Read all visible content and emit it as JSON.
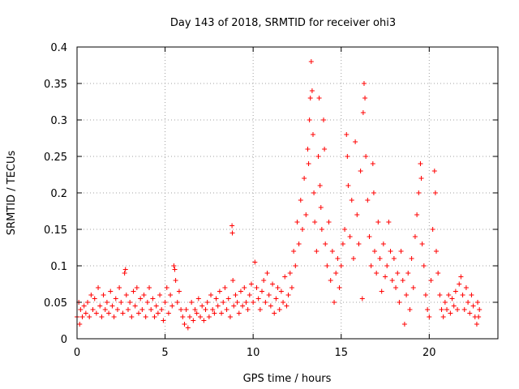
{
  "chart_data": {
    "type": "scatter",
    "title": "Day 143 of 2018, SRMTID for receiver ohi3",
    "xlabel": "GPS time / hours",
    "ylabel": "SRMTID / TECUs",
    "xlim": [
      0,
      23.9
    ],
    "ylim": [
      0,
      0.4
    ],
    "xticks": [
      0,
      5,
      10,
      15,
      20
    ],
    "xtick_labels": [
      "0",
      "5",
      "10",
      "15",
      "20"
    ],
    "yticks": [
      0,
      0.05,
      0.1,
      0.15,
      0.2,
      0.25,
      0.3,
      0.35,
      0.4
    ],
    "ytick_labels": [
      "0",
      "0.05",
      "0.1",
      "0.15",
      "0.2",
      "0.25",
      "0.3",
      "0.35",
      "0.4"
    ],
    "grid": true,
    "marker": "+",
    "color": "#ff0000",
    "series": [
      {
        "name": "SRMTID",
        "points": [
          [
            0.0,
            0.03
          ],
          [
            0.1,
            0.05
          ],
          [
            0.15,
            0.02
          ],
          [
            0.2,
            0.04
          ],
          [
            0.3,
            0.03
          ],
          [
            0.4,
            0.045
          ],
          [
            0.5,
            0.035
          ],
          [
            0.6,
            0.05
          ],
          [
            0.7,
            0.03
          ],
          [
            0.8,
            0.06
          ],
          [
            0.9,
            0.04
          ],
          [
            1.0,
            0.055
          ],
          [
            1.1,
            0.035
          ],
          [
            1.2,
            0.07
          ],
          [
            1.3,
            0.045
          ],
          [
            1.4,
            0.03
          ],
          [
            1.5,
            0.06
          ],
          [
            1.6,
            0.04
          ],
          [
            1.7,
            0.05
          ],
          [
            1.8,
            0.035
          ],
          [
            1.9,
            0.065
          ],
          [
            2.0,
            0.045
          ],
          [
            2.1,
            0.03
          ],
          [
            2.2,
            0.055
          ],
          [
            2.3,
            0.04
          ],
          [
            2.4,
            0.07
          ],
          [
            2.5,
            0.05
          ],
          [
            2.6,
            0.035
          ],
          [
            2.7,
            0.09
          ],
          [
            2.75,
            0.095
          ],
          [
            2.8,
            0.06
          ],
          [
            2.9,
            0.04
          ],
          [
            3.0,
            0.05
          ],
          [
            3.1,
            0.03
          ],
          [
            3.2,
            0.065
          ],
          [
            3.3,
            0.045
          ],
          [
            3.4,
            0.07
          ],
          [
            3.5,
            0.035
          ],
          [
            3.6,
            0.055
          ],
          [
            3.7,
            0.04
          ],
          [
            3.8,
            0.06
          ],
          [
            3.9,
            0.03
          ],
          [
            4.0,
            0.05
          ],
          [
            4.1,
            0.07
          ],
          [
            4.2,
            0.04
          ],
          [
            4.3,
            0.055
          ],
          [
            4.4,
            0.03
          ],
          [
            4.5,
            0.045
          ],
          [
            4.6,
            0.035
          ],
          [
            4.7,
            0.06
          ],
          [
            4.8,
            0.04
          ],
          [
            4.9,
            0.025
          ],
          [
            5.0,
            0.05
          ],
          [
            5.1,
            0.07
          ],
          [
            5.2,
            0.035
          ],
          [
            5.3,
            0.06
          ],
          [
            5.4,
            0.045
          ],
          [
            5.5,
            0.1
          ],
          [
            5.55,
            0.095
          ],
          [
            5.6,
            0.08
          ],
          [
            5.7,
            0.05
          ],
          [
            5.8,
            0.065
          ],
          [
            5.9,
            0.04
          ],
          [
            6.0,
            0.03
          ],
          [
            6.1,
            0.02
          ],
          [
            6.2,
            0.04
          ],
          [
            6.3,
            0.015
          ],
          [
            6.4,
            0.03
          ],
          [
            6.5,
            0.05
          ],
          [
            6.6,
            0.025
          ],
          [
            6.7,
            0.04
          ],
          [
            6.8,
            0.035
          ],
          [
            6.9,
            0.055
          ],
          [
            7.0,
            0.03
          ],
          [
            7.1,
            0.045
          ],
          [
            7.2,
            0.025
          ],
          [
            7.3,
            0.04
          ],
          [
            7.4,
            0.05
          ],
          [
            7.5,
            0.03
          ],
          [
            7.6,
            0.06
          ],
          [
            7.7,
            0.04
          ],
          [
            7.8,
            0.035
          ],
          [
            7.9,
            0.055
          ],
          [
            8.0,
            0.045
          ],
          [
            8.1,
            0.065
          ],
          [
            8.2,
            0.035
          ],
          [
            8.3,
            0.05
          ],
          [
            8.4,
            0.07
          ],
          [
            8.5,
            0.04
          ],
          [
            8.6,
            0.055
          ],
          [
            8.7,
            0.03
          ],
          [
            8.8,
            0.155
          ],
          [
            8.82,
            0.145
          ],
          [
            8.85,
            0.08
          ],
          [
            8.9,
            0.045
          ],
          [
            9.0,
            0.06
          ],
          [
            9.1,
            0.05
          ],
          [
            9.2,
            0.035
          ],
          [
            9.3,
            0.065
          ],
          [
            9.4,
            0.045
          ],
          [
            9.5,
            0.07
          ],
          [
            9.6,
            0.05
          ],
          [
            9.7,
            0.04
          ],
          [
            9.8,
            0.06
          ],
          [
            9.9,
            0.075
          ],
          [
            10.0,
            0.05
          ],
          [
            10.1,
            0.105
          ],
          [
            10.2,
            0.07
          ],
          [
            10.3,
            0.055
          ],
          [
            10.4,
            0.04
          ],
          [
            10.5,
            0.065
          ],
          [
            10.6,
            0.08
          ],
          [
            10.7,
            0.05
          ],
          [
            10.8,
            0.09
          ],
          [
            10.9,
            0.06
          ],
          [
            11.0,
            0.045
          ],
          [
            11.1,
            0.075
          ],
          [
            11.2,
            0.035
          ],
          [
            11.3,
            0.055
          ],
          [
            11.4,
            0.07
          ],
          [
            11.5,
            0.04
          ],
          [
            11.6,
            0.065
          ],
          [
            11.7,
            0.05
          ],
          [
            11.8,
            0.085
          ],
          [
            11.9,
            0.045
          ],
          [
            12.0,
            0.06
          ],
          [
            12.1,
            0.09
          ],
          [
            12.2,
            0.07
          ],
          [
            12.3,
            0.12
          ],
          [
            12.4,
            0.1
          ],
          [
            12.5,
            0.16
          ],
          [
            12.6,
            0.13
          ],
          [
            12.7,
            0.19
          ],
          [
            12.8,
            0.15
          ],
          [
            12.9,
            0.22
          ],
          [
            13.0,
            0.17
          ],
          [
            13.1,
            0.26
          ],
          [
            13.15,
            0.24
          ],
          [
            13.2,
            0.3
          ],
          [
            13.25,
            0.33
          ],
          [
            13.3,
            0.38
          ],
          [
            13.35,
            0.34
          ],
          [
            13.4,
            0.28
          ],
          [
            13.45,
            0.2
          ],
          [
            13.5,
            0.16
          ],
          [
            13.6,
            0.12
          ],
          [
            13.7,
            0.25
          ],
          [
            13.75,
            0.33
          ],
          [
            13.8,
            0.21
          ],
          [
            13.85,
            0.18
          ],
          [
            13.9,
            0.15
          ],
          [
            14.0,
            0.3
          ],
          [
            14.05,
            0.26
          ],
          [
            14.1,
            0.13
          ],
          [
            14.2,
            0.1
          ],
          [
            14.3,
            0.16
          ],
          [
            14.4,
            0.08
          ],
          [
            14.5,
            0.12
          ],
          [
            14.6,
            0.05
          ],
          [
            14.7,
            0.09
          ],
          [
            14.8,
            0.11
          ],
          [
            14.9,
            0.07
          ],
          [
            15.0,
            0.1
          ],
          [
            15.1,
            0.13
          ],
          [
            15.2,
            0.15
          ],
          [
            15.3,
            0.28
          ],
          [
            15.35,
            0.25
          ],
          [
            15.4,
            0.21
          ],
          [
            15.5,
            0.14
          ],
          [
            15.6,
            0.19
          ],
          [
            15.7,
            0.11
          ],
          [
            15.8,
            0.27
          ],
          [
            15.9,
            0.17
          ],
          [
            16.0,
            0.13
          ],
          [
            16.1,
            0.23
          ],
          [
            16.2,
            0.055
          ],
          [
            16.25,
            0.31
          ],
          [
            16.3,
            0.35
          ],
          [
            16.35,
            0.33
          ],
          [
            16.4,
            0.25
          ],
          [
            16.5,
            0.19
          ],
          [
            16.6,
            0.14
          ],
          [
            16.7,
            0.1
          ],
          [
            16.8,
            0.24
          ],
          [
            16.85,
            0.2
          ],
          [
            16.9,
            0.12
          ],
          [
            17.0,
            0.09
          ],
          [
            17.1,
            0.16
          ],
          [
            17.2,
            0.11
          ],
          [
            17.3,
            0.065
          ],
          [
            17.4,
            0.13
          ],
          [
            17.5,
            0.085
          ],
          [
            17.6,
            0.1
          ],
          [
            17.7,
            0.16
          ],
          [
            17.8,
            0.12
          ],
          [
            17.9,
            0.08
          ],
          [
            18.0,
            0.11
          ],
          [
            18.1,
            0.07
          ],
          [
            18.2,
            0.09
          ],
          [
            18.3,
            0.05
          ],
          [
            18.4,
            0.12
          ],
          [
            18.5,
            0.08
          ],
          [
            18.6,
            0.02
          ],
          [
            18.7,
            0.06
          ],
          [
            18.8,
            0.09
          ],
          [
            18.9,
            0.04
          ],
          [
            19.0,
            0.11
          ],
          [
            19.1,
            0.07
          ],
          [
            19.2,
            0.14
          ],
          [
            19.3,
            0.17
          ],
          [
            19.4,
            0.2
          ],
          [
            19.5,
            0.24
          ],
          [
            19.55,
            0.22
          ],
          [
            19.6,
            0.13
          ],
          [
            19.7,
            0.1
          ],
          [
            19.8,
            0.06
          ],
          [
            19.9,
            0.04
          ],
          [
            20.0,
            0.03
          ],
          [
            20.1,
            0.08
          ],
          [
            20.2,
            0.15
          ],
          [
            20.3,
            0.23
          ],
          [
            20.35,
            0.2
          ],
          [
            20.4,
            0.12
          ],
          [
            20.5,
            0.09
          ],
          [
            20.6,
            0.06
          ],
          [
            20.7,
            0.04
          ],
          [
            20.8,
            0.03
          ],
          [
            20.9,
            0.05
          ],
          [
            21.0,
            0.04
          ],
          [
            21.1,
            0.06
          ],
          [
            21.2,
            0.035
          ],
          [
            21.3,
            0.055
          ],
          [
            21.4,
            0.045
          ],
          [
            21.5,
            0.065
          ],
          [
            21.6,
            0.04
          ],
          [
            21.7,
            0.075
          ],
          [
            21.8,
            0.085
          ],
          [
            21.9,
            0.06
          ],
          [
            22.0,
            0.04
          ],
          [
            22.1,
            0.07
          ],
          [
            22.2,
            0.05
          ],
          [
            22.3,
            0.035
          ],
          [
            22.4,
            0.06
          ],
          [
            22.5,
            0.045
          ],
          [
            22.6,
            0.03
          ],
          [
            22.7,
            0.02
          ],
          [
            22.75,
            0.05
          ],
          [
            22.8,
            0.03
          ],
          [
            22.85,
            0.04
          ]
        ]
      }
    ]
  }
}
